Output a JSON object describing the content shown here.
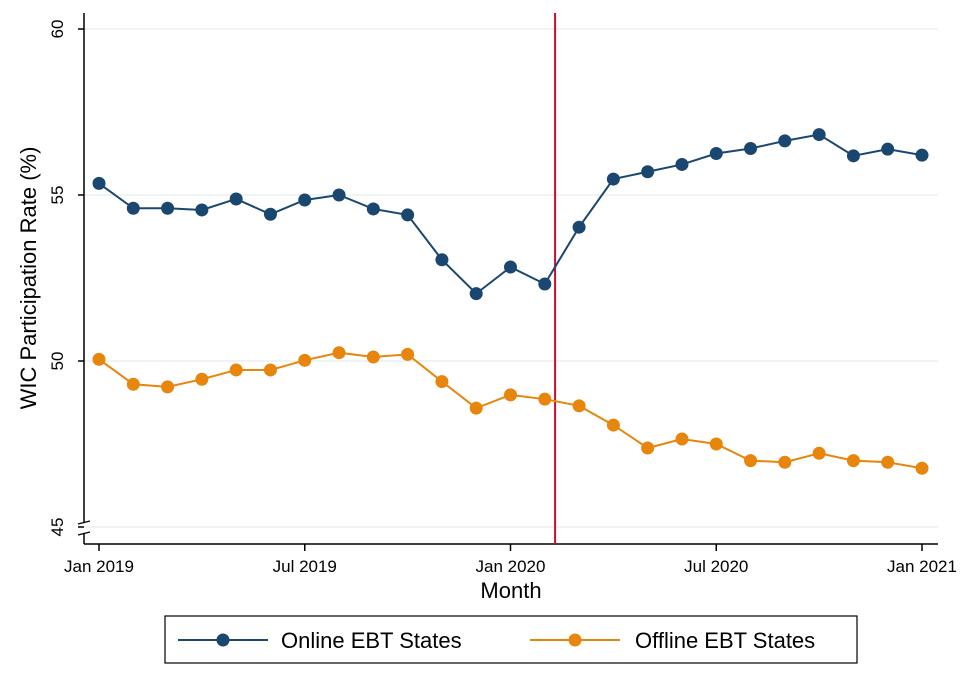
{
  "chart_data": {
    "type": "line",
    "title": "",
    "xlabel": "Month",
    "ylabel": "WIC Participation Rate (%)",
    "ylim": [
      45,
      60
    ],
    "yticks": [
      45,
      50,
      55,
      60
    ],
    "ytick_labels": [
      "45",
      "50",
      "55",
      "60"
    ],
    "x": [
      0,
      1,
      2,
      3,
      4,
      5,
      6,
      7,
      8,
      9,
      10,
      11,
      12,
      13,
      14,
      15,
      16,
      17,
      18,
      19,
      20,
      21,
      22,
      23,
      24
    ],
    "xlim": [
      0,
      24
    ],
    "xticks": [
      0,
      6,
      12,
      18,
      24
    ],
    "xtick_labels": [
      "Jan 2019",
      "Jul 2019",
      "Jan 2020",
      "Jul 2020",
      "Jan 2021"
    ],
    "vline": {
      "x": 13.3,
      "color": "#c8102e"
    },
    "grid": true,
    "series": [
      {
        "name": "Online EBT States",
        "color": "#1a476f",
        "values": [
          55.35,
          54.6,
          54.6,
          54.55,
          54.88,
          54.42,
          54.85,
          55.0,
          54.58,
          54.4,
          53.05,
          52.03,
          52.83,
          52.32,
          54.03,
          55.48,
          55.7,
          55.92,
          56.25,
          56.4,
          56.63,
          56.82,
          56.18,
          56.38,
          56.2
        ]
      },
      {
        "name": "Offline EBT States",
        "color": "#e8850c",
        "values": [
          50.05,
          49.3,
          49.22,
          49.45,
          49.73,
          49.73,
          50.02,
          50.25,
          50.12,
          50.2,
          49.38,
          48.58,
          48.98,
          48.85,
          48.65,
          48.07,
          47.38,
          47.65,
          47.5,
          47.0,
          46.95,
          47.22,
          47.0,
          46.95,
          46.77
        ]
      }
    ],
    "legend_position": "bottom"
  }
}
